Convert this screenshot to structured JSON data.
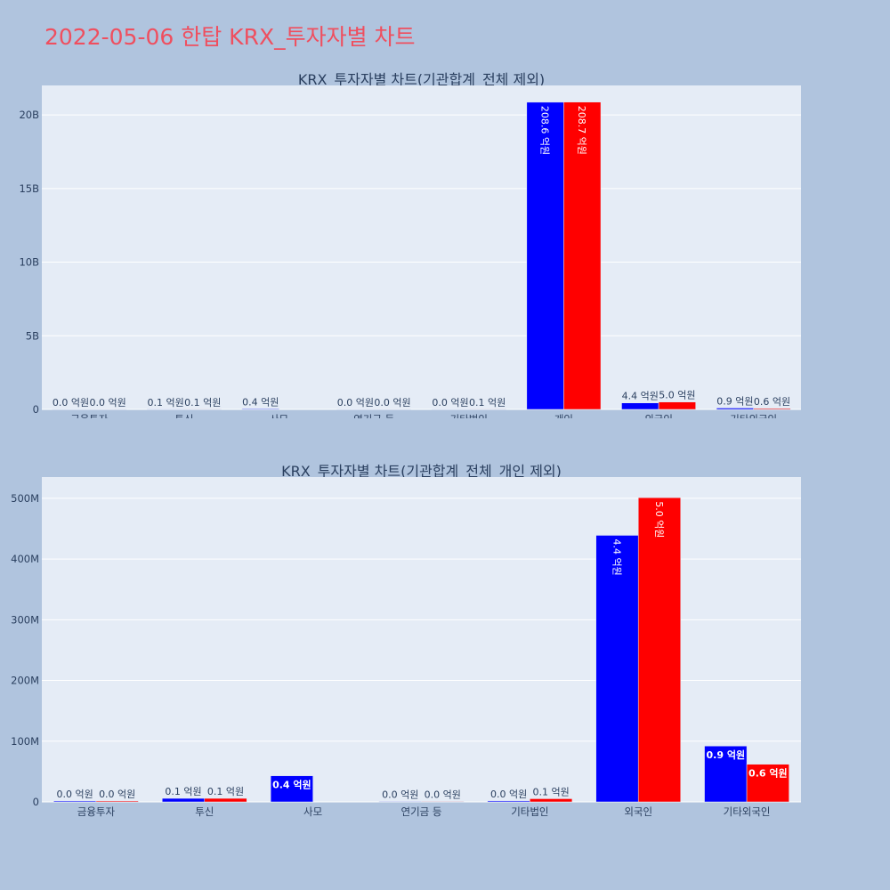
{
  "title": "2022-05-06 한탑 KRX_투자자별 차트",
  "colors": {
    "buy": "#0000ff",
    "sell": "#ff0000",
    "plot_bg": "#e5ecf6",
    "page_bg": "#b0c4de",
    "title": "#ef4f5f"
  },
  "chart_data": [
    {
      "type": "bar",
      "title": "KRX_투자자별 차트(기관합계_전체 제외)",
      "categories": [
        "금융투자",
        "투신",
        "사모",
        "연기금 등",
        "기타법인",
        "개인",
        "외국인",
        "기타외국인"
      ],
      "ylim": [
        0,
        22000000000
      ],
      "ytick_values": [
        0,
        5000000000,
        10000000000,
        15000000000,
        20000000000
      ],
      "ytick_labels": [
        "0",
        "5B",
        "10B",
        "15B",
        "20B"
      ],
      "grid": true,
      "series": [
        {
          "color": "#0000ff",
          "values": [
            1500000,
            5800000,
            43000000,
            800000,
            1600000,
            20860000000,
            439000000,
            92000000
          ],
          "labels": [
            "0.0 억원",
            "0.1 억원",
            "0.4 억원",
            "0.0 억원",
            "0.0 억원",
            "208.6 억원",
            "4.4 억원",
            "0.9 억원"
          ]
        },
        {
          "color": "#ff0000",
          "values": [
            1500000,
            5800000,
            0,
            800000,
            5200000,
            20870000000,
            501000000,
            62000000
          ],
          "labels": [
            "0.0 억원",
            "0.1 억원",
            "",
            "0.0 억원",
            "0.1 억원",
            "208.7 억원",
            "5.0 억원",
            "0.6 억원"
          ]
        }
      ]
    },
    {
      "type": "bar",
      "title": "KRX_투자자별 차트(기관합계_전체_개인 제외)",
      "categories": [
        "금융투자",
        "투신",
        "사모",
        "연기금 등",
        "기타법인",
        "외국인",
        "기타외국인"
      ],
      "ylim": [
        0,
        535000000
      ],
      "ytick_values": [
        0,
        100000000,
        200000000,
        300000000,
        400000000,
        500000000
      ],
      "ytick_labels": [
        "0",
        "100M",
        "200M",
        "300M",
        "400M",
        "500M"
      ],
      "grid": true,
      "series": [
        {
          "color": "#0000ff",
          "values": [
            1500000,
            5800000,
            43000000,
            800000,
            1600000,
            439000000,
            92000000
          ],
          "labels": [
            "0.0 억원",
            "0.1 억원",
            "0.4 억원",
            "0.0 억원",
            "0.0 억원",
            "4.4 억원",
            "0.9 억원"
          ]
        },
        {
          "color": "#ff0000",
          "values": [
            1500000,
            5800000,
            0,
            800000,
            5200000,
            501000000,
            62000000
          ],
          "labels": [
            "0.0 억원",
            "0.1 억원",
            "",
            "0.0 억원",
            "0.1 억원",
            "5.0 억원",
            "0.6 억원"
          ]
        }
      ]
    }
  ]
}
